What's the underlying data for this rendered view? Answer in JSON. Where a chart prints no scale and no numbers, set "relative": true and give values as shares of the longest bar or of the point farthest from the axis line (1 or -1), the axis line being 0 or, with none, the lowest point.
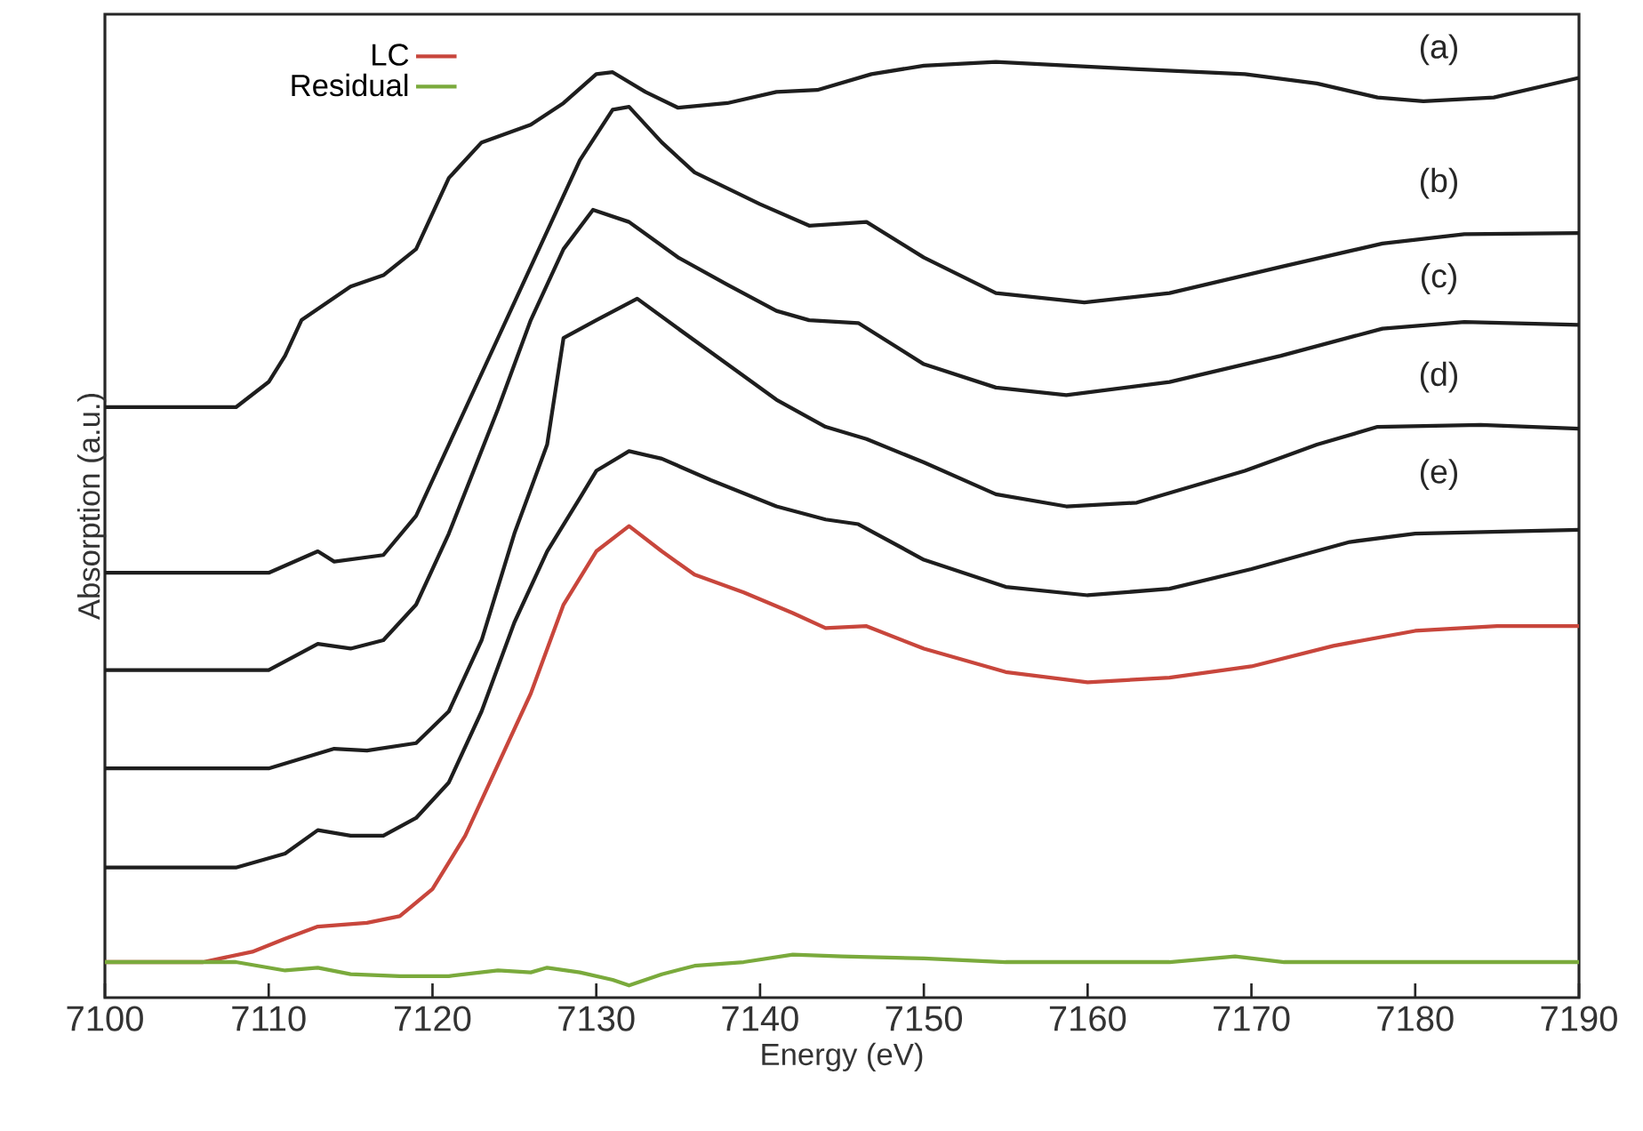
{
  "chart_data": {
    "type": "line",
    "relative": true,
    "xlabel": "Energy (eV)",
    "ylabel": "Absorption (a.u.)",
    "xlim": [
      7100,
      7190
    ],
    "xticks": [
      7100,
      7110,
      7120,
      7130,
      7140,
      7150,
      7160,
      7170,
      7180,
      7190
    ],
    "legend": "top left",
    "grid": false,
    "line_style": "solid",
    "annotations": [
      "(a)",
      "(b)",
      "(c)",
      "(d)",
      "(e)"
    ],
    "series": [
      {
        "color": "#1e1e1e",
        "x": [
          7100,
          7108,
          7110,
          7111,
          7112,
          7115,
          7117,
          7119,
          7121,
          7123,
          7126,
          7128,
          7130,
          7131,
          7133,
          7135,
          7138,
          7141,
          7143.5,
          7146.8,
          7150,
          7154.4,
          7161,
          7169.6,
          7174,
          7177.7,
          7180.5,
          7184.8,
          7190
        ],
        "values": [
          0.631,
          0.631,
          0.658,
          0.686,
          0.724,
          0.76,
          0.772,
          0.8,
          0.876,
          0.914,
          0.933,
          0.956,
          0.987,
          0.989,
          0.968,
          0.951,
          0.956,
          0.968,
          0.97,
          0.987,
          0.996,
          1.0,
          0.994,
          0.987,
          0.977,
          0.962,
          0.958,
          0.962,
          0.983
        ]
      },
      {
        "color": "#1e1e1e",
        "x": [
          7100,
          7110,
          7113,
          7114,
          7117,
          7119,
          7121,
          7124,
          7127,
          7129,
          7131,
          7132,
          7134,
          7136,
          7140,
          7143,
          7146.5,
          7150,
          7154.4,
          7159.8,
          7165,
          7171.8,
          7178,
          7183,
          7190
        ],
        "values": [
          0.454,
          0.454,
          0.477,
          0.466,
          0.473,
          0.515,
          0.591,
          0.705,
          0.819,
          0.895,
          0.949,
          0.952,
          0.914,
          0.882,
          0.848,
          0.825,
          0.829,
          0.791,
          0.753,
          0.743,
          0.753,
          0.781,
          0.806,
          0.816,
          0.817
        ]
      },
      {
        "color": "#1e1e1e",
        "x": [
          7100,
          7110,
          7113,
          7115,
          7117,
          7119,
          7121,
          7124,
          7126,
          7128,
          7129.8,
          7132,
          7135,
          7138,
          7141,
          7143,
          7146,
          7150,
          7154.4,
          7158.7,
          7165,
          7171.8,
          7178,
          7183,
          7190
        ],
        "values": [
          0.35,
          0.35,
          0.378,
          0.373,
          0.382,
          0.42,
          0.496,
          0.629,
          0.724,
          0.8,
          0.842,
          0.829,
          0.791,
          0.762,
          0.734,
          0.724,
          0.721,
          0.677,
          0.652,
          0.644,
          0.658,
          0.686,
          0.715,
          0.722,
          0.719
        ]
      },
      {
        "color": "#1e1e1e",
        "x": [
          7100,
          7110,
          7114,
          7116,
          7119,
          7121,
          7123,
          7125,
          7127,
          7128,
          7130,
          7132.5,
          7135,
          7138,
          7141,
          7144,
          7146.5,
          7150,
          7154.4,
          7158.7,
          7163,
          7169.6,
          7174,
          7177.7,
          7184,
          7190
        ],
        "values": [
          0.245,
          0.245,
          0.266,
          0.264,
          0.272,
          0.306,
          0.382,
          0.496,
          0.591,
          0.705,
          0.724,
          0.747,
          0.715,
          0.677,
          0.639,
          0.61,
          0.597,
          0.572,
          0.538,
          0.525,
          0.529,
          0.563,
          0.591,
          0.61,
          0.612,
          0.608
        ]
      },
      {
        "color": "#1e1e1e",
        "x": [
          7100,
          7108,
          7111,
          7113,
          7115,
          7117,
          7119,
          7121,
          7123,
          7125,
          7127,
          7129,
          7130,
          7132,
          7134,
          7137,
          7141,
          7144,
          7146,
          7150,
          7155,
          7160,
          7165,
          7170,
          7176,
          7180,
          7190
        ],
        "values": [
          0.139,
          0.139,
          0.154,
          0.179,
          0.173,
          0.173,
          0.192,
          0.23,
          0.306,
          0.401,
          0.477,
          0.534,
          0.563,
          0.584,
          0.576,
          0.553,
          0.525,
          0.511,
          0.506,
          0.468,
          0.439,
          0.43,
          0.437,
          0.458,
          0.487,
          0.496,
          0.5
        ]
      },
      {
        "name": "LC",
        "color": "#c8463c",
        "x": [
          7100,
          7106,
          7109,
          7111,
          7113,
          7116,
          7118,
          7120,
          7122,
          7124,
          7126,
          7128,
          7130,
          7132,
          7134,
          7136,
          7139,
          7142,
          7144,
          7146.5,
          7150,
          7155,
          7160,
          7165,
          7170,
          7175,
          7180,
          7185,
          7190
        ],
        "values": [
          0.038,
          0.038,
          0.049,
          0.063,
          0.076,
          0.08,
          0.087,
          0.116,
          0.173,
          0.249,
          0.325,
          0.42,
          0.477,
          0.504,
          0.477,
          0.452,
          0.433,
          0.411,
          0.395,
          0.397,
          0.373,
          0.348,
          0.337,
          0.342,
          0.354,
          0.376,
          0.392,
          0.397,
          0.397
        ]
      },
      {
        "name": "Residual",
        "color": "#7aaa3c",
        "x": [
          7100,
          7108,
          7111,
          7113,
          7115,
          7118,
          7121,
          7124,
          7126,
          7127,
          7129,
          7131,
          7132,
          7134,
          7136,
          7139,
          7142,
          7145,
          7150,
          7155,
          7160,
          7165,
          7169,
          7172,
          7180,
          7190
        ],
        "values": [
          0.038,
          0.038,
          0.029,
          0.032,
          0.025,
          0.023,
          0.023,
          0.029,
          0.027,
          0.032,
          0.027,
          0.019,
          0.013,
          0.025,
          0.034,
          0.038,
          0.046,
          0.044,
          0.042,
          0.038,
          0.038,
          0.038,
          0.044,
          0.038,
          0.038,
          0.038
        ]
      }
    ]
  }
}
